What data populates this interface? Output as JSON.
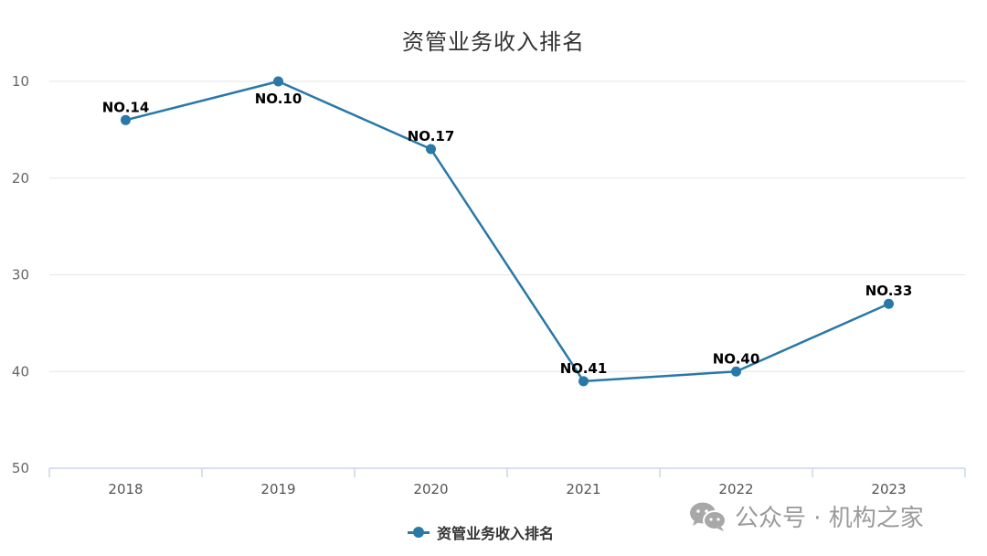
{
  "title": "资管业务收入排名",
  "colors": {
    "series": "#2878a8",
    "grid": "#e6e6e6",
    "axis": "#ccd6eb",
    "watermark": "#9a9a9a"
  },
  "legend": {
    "label": "资管业务收入排名",
    "icon": "line-marker-icon"
  },
  "watermark": {
    "icon": "wechat-icon",
    "text": "公众号 · 机构之家"
  },
  "chart_data": {
    "type": "line",
    "title": "资管业务收入排名",
    "xlabel": "",
    "ylabel": "",
    "categories": [
      "2018",
      "2019",
      "2020",
      "2021",
      "2022",
      "2023"
    ],
    "series": [
      {
        "name": "资管业务收入排名",
        "values": [
          14,
          10,
          17,
          41,
          40,
          33
        ],
        "data_labels": [
          "NO.14",
          "NO.10",
          "NO.17",
          "NO.41",
          "NO.40",
          "NO.33"
        ]
      }
    ],
    "y_axis": {
      "reversed": true,
      "ylim": [
        10,
        50
      ],
      "ticks": [
        "10",
        "20",
        "30",
        "40",
        "50"
      ]
    },
    "grid": true,
    "legend_position": "bottom-center"
  }
}
